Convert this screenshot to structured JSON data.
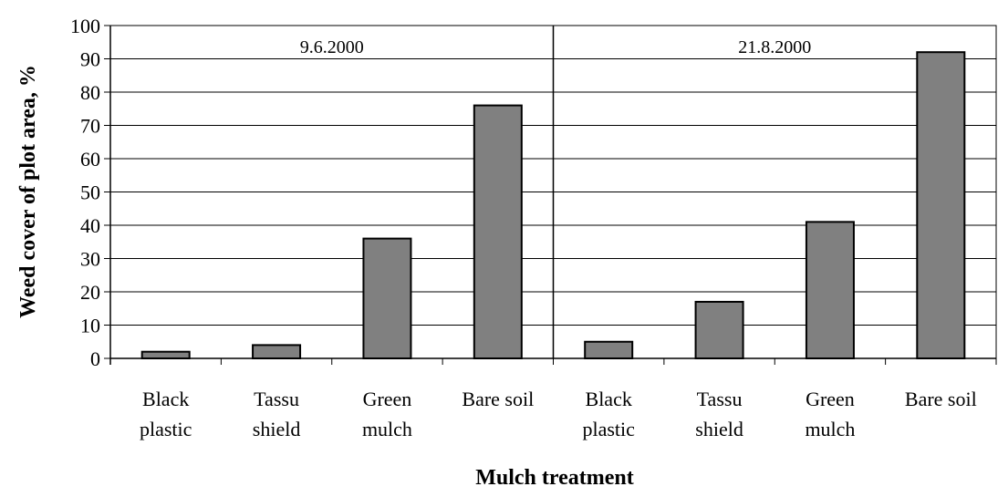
{
  "chart_data": {
    "type": "bar",
    "ylabel": "Weed cover of plot area, %",
    "xlabel": "Mulch treatment",
    "ylim": [
      0,
      100
    ],
    "yticks": [
      "0",
      "10",
      "20",
      "30",
      "40",
      "50",
      "60",
      "70",
      "80",
      "90",
      "100"
    ],
    "grid": true,
    "bar_color": "#808080",
    "groups": [
      {
        "label": "9.6.2000",
        "categories": [
          [
            "Black",
            "plastic"
          ],
          [
            "Tassu",
            "shield"
          ],
          [
            "Green",
            "mulch"
          ],
          [
            "Bare soil"
          ]
        ],
        "values": [
          2,
          4,
          36,
          76
        ]
      },
      {
        "label": "21.8.2000",
        "categories": [
          [
            "Black",
            "plastic"
          ],
          [
            "Tassu",
            "shield"
          ],
          [
            "Green",
            "mulch"
          ],
          [
            "Bare soil"
          ]
        ],
        "values": [
          5,
          17,
          41,
          92
        ]
      }
    ]
  }
}
